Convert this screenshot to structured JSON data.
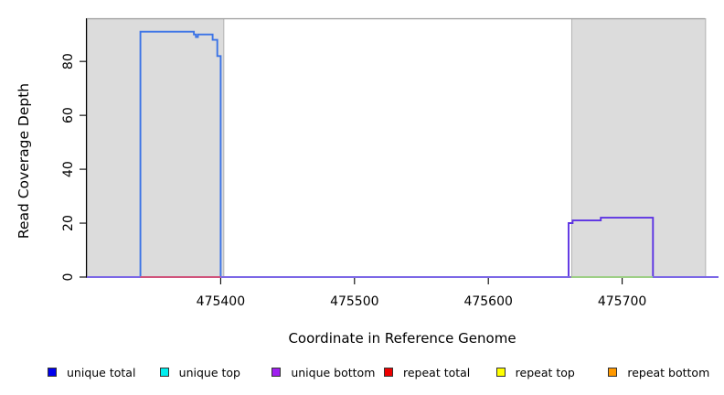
{
  "chart_data": {
    "type": "line",
    "subtype": "step-coverage-plot",
    "title": "",
    "xlabel": "Coordinate in Reference Genome",
    "ylabel": "Read Coverage Depth",
    "xlim": [
      475300,
      475772
    ],
    "ylim": [
      0,
      96
    ],
    "xticks": [
      "475400",
      "475500",
      "475600",
      "475700"
    ],
    "yticks": [
      "0",
      "20",
      "40",
      "60",
      "80"
    ],
    "grid": false,
    "legend_position": "bottom",
    "axis_color": "#000000",
    "plot_top_border_color": "#9a9a9a",
    "shaded_regions": [
      {
        "x0": 475300,
        "x1": 475402,
        "fill": "#dcdcdc",
        "border": "#b2b2b2"
      },
      {
        "x0": 475662,
        "x1": 475762,
        "fill": "#dcdcdc",
        "border": "#b2b2b2"
      }
    ],
    "series": [
      {
        "name": "unique total",
        "color": "#3b73e6",
        "points": [
          [
            475300,
            0
          ],
          [
            475340,
            0
          ],
          [
            475340,
            91
          ],
          [
            475380,
            91
          ],
          [
            475380,
            90
          ],
          [
            475381.5,
            90
          ],
          [
            475381.5,
            89
          ],
          [
            475383,
            89
          ],
          [
            475383,
            90
          ],
          [
            475394,
            90
          ],
          [
            475394,
            88
          ],
          [
            475397.5,
            88
          ],
          [
            475397.5,
            82
          ],
          [
            475400,
            82
          ],
          [
            475400,
            0
          ],
          [
            475772,
            0
          ]
        ]
      },
      {
        "name": "unique top",
        "color": "#00d5d5",
        "points": [
          [
            475300,
            0
          ],
          [
            475772,
            0
          ]
        ]
      },
      {
        "name": "repeat total",
        "color": "#e15a6d",
        "points": [
          [
            475300,
            0
          ],
          [
            475772,
            0
          ]
        ]
      },
      {
        "name": "repeat top",
        "color": "#f0e000",
        "points": [
          [
            475300,
            0
          ],
          [
            475772,
            0
          ]
        ]
      },
      {
        "name": "repeat bottom",
        "color": "#f0a030",
        "points": [
          [
            475300,
            0
          ],
          [
            475772,
            0
          ]
        ]
      },
      {
        "name": "unique bottom",
        "color": "#5c33e3",
        "points": [
          [
            475300,
            0
          ],
          [
            475660,
            0
          ],
          [
            475660,
            20
          ],
          [
            475663,
            20
          ],
          [
            475663,
            21
          ],
          [
            475684,
            21
          ],
          [
            475684,
            22
          ],
          [
            475723,
            22
          ],
          [
            475723,
            0
          ],
          [
            475772,
            0
          ]
        ]
      }
    ],
    "baseline_visible_segments": [
      {
        "x0": 475300,
        "x1": 475340,
        "color": "#8170e6"
      },
      {
        "x0": 475340,
        "x1": 475400,
        "color": "#e15a6d"
      },
      {
        "x0": 475400,
        "x1": 475662,
        "color": "#8170e6"
      },
      {
        "x0": 475662,
        "x1": 475723,
        "color": "#93d693"
      },
      {
        "x0": 475723,
        "x1": 475772,
        "color": "#8170e6"
      }
    ]
  },
  "legend": {
    "items": [
      {
        "label": "unique total",
        "color": "#0000ee"
      },
      {
        "label": "unique top",
        "color": "#00eeee"
      },
      {
        "label": "unique bottom",
        "color": "#a020f0"
      },
      {
        "label": "repeat total",
        "color": "#ee0000"
      },
      {
        "label": "repeat top",
        "color": "#ffff00"
      },
      {
        "label": "repeat bottom",
        "color": "#ff9900"
      }
    ],
    "swatch_border": "#333333"
  }
}
